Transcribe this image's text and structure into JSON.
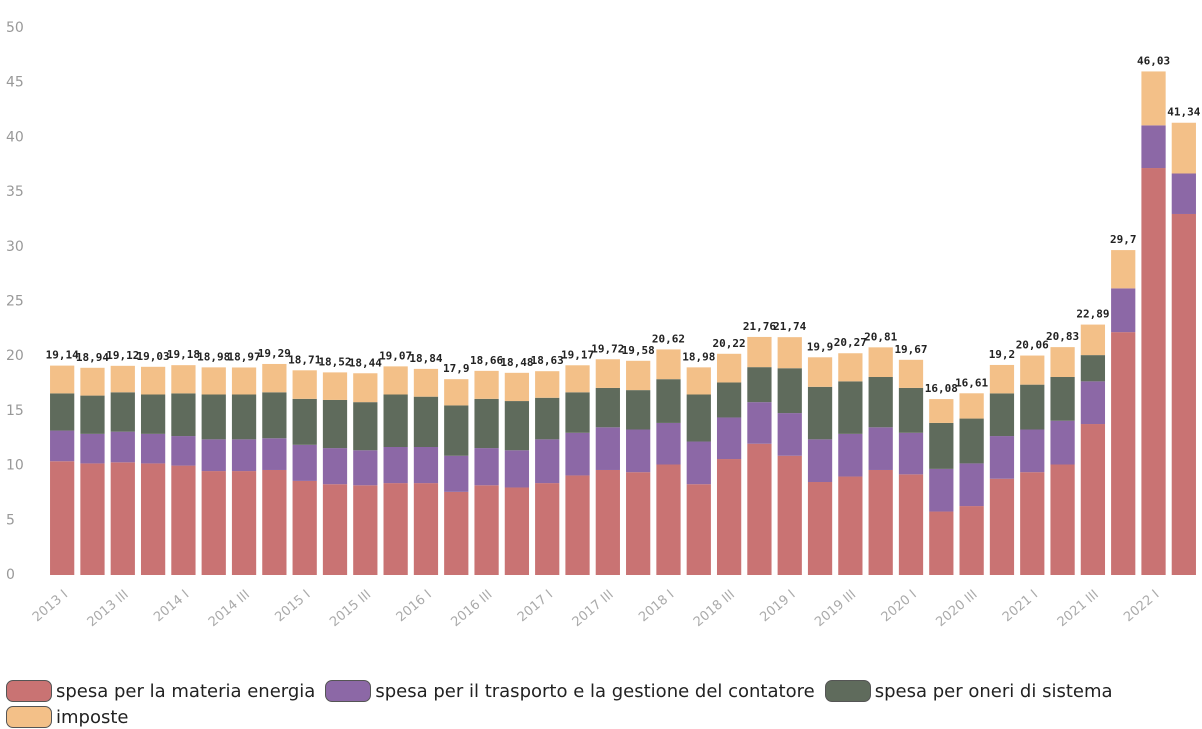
{
  "chart_data": {
    "type": "stacked_bar",
    "categories": [
      "2013 I",
      null,
      "2013 III",
      null,
      "2014 I",
      null,
      "2014 III",
      null,
      "2015 I",
      null,
      "2015 III",
      null,
      "2016 I",
      null,
      "2016 III",
      null,
      "2017 I",
      null,
      "2017 III",
      null,
      "2018 I",
      null,
      "2018 III",
      null,
      "2019 I",
      null,
      "2019 III",
      null,
      "2020 I",
      null,
      "2020 III",
      null,
      "2021 I",
      null,
      "2021 III",
      null,
      "2022 I",
      null
    ],
    "series": [
      {
        "name": "spesa per la materia energia",
        "color": "#c97373",
        "values": [
          10.4,
          10.2,
          10.3,
          10.2,
          10.0,
          9.5,
          9.5,
          9.6,
          8.6,
          8.3,
          8.2,
          8.4,
          8.4,
          7.6,
          8.2,
          8.0,
          8.4,
          9.1,
          9.6,
          9.4,
          10.1,
          8.3,
          10.6,
          12.0,
          10.9,
          8.5,
          9.0,
          9.6,
          9.2,
          5.8,
          6.3,
          8.8,
          9.4,
          10.1,
          13.8,
          22.2,
          37.2,
          33.0
        ]
      },
      {
        "name": "spesa per il trasporto e la gestione del contatore",
        "color": "#8c68a6",
        "values": [
          2.8,
          2.7,
          2.8,
          2.7,
          2.7,
          2.9,
          2.9,
          2.9,
          3.3,
          3.3,
          3.2,
          3.3,
          3.3,
          3.3,
          3.4,
          3.4,
          4.0,
          3.9,
          3.9,
          3.9,
          3.8,
          3.9,
          3.8,
          3.8,
          3.9,
          3.9,
          3.9,
          3.9,
          3.8,
          3.9,
          3.9,
          3.9,
          3.9,
          4.0,
          3.9,
          4.0,
          3.9,
          3.7
        ]
      },
      {
        "name": "spesa per oneri di sistema",
        "color": "#5f6b5c",
        "values": [
          3.4,
          3.5,
          3.6,
          3.6,
          3.9,
          4.1,
          4.1,
          4.2,
          4.2,
          4.4,
          4.4,
          4.8,
          4.6,
          4.6,
          4.5,
          4.5,
          3.8,
          3.7,
          3.6,
          3.6,
          4.0,
          4.3,
          3.2,
          3.2,
          4.1,
          4.8,
          4.8,
          4.6,
          4.1,
          4.2,
          4.1,
          3.9,
          4.1,
          4.0,
          2.4,
          0,
          0,
          0
        ]
      },
      {
        "name": "imposte",
        "color": "#f3c088",
        "values": [
          2.54,
          2.54,
          2.42,
          2.53,
          2.58,
          2.48,
          2.47,
          2.59,
          2.61,
          2.52,
          2.64,
          2.57,
          2.54,
          2.4,
          2.56,
          2.58,
          2.43,
          2.47,
          2.62,
          2.68,
          2.72,
          2.48,
          2.62,
          2.76,
          2.84,
          2.7,
          2.57,
          2.71,
          2.57,
          2.18,
          2.31,
          2.6,
          2.66,
          2.73,
          2.79,
          3.5,
          4.93,
          4.64
        ]
      }
    ],
    "totals": {
      "values": [
        19.14,
        18.94,
        19.12,
        19.03,
        19.18,
        18.98,
        18.97,
        19.29,
        18.71,
        18.52,
        18.44,
        19.07,
        18.84,
        17.9,
        18.66,
        18.48,
        18.63,
        19.17,
        19.72,
        19.58,
        20.62,
        18.98,
        20.22,
        21.76,
        21.74,
        19.9,
        20.27,
        20.81,
        19.67,
        16.08,
        16.61,
        19.2,
        20.06,
        20.83,
        22.89,
        29.7,
        46.03,
        41.34
      ],
      "value_labels": [
        "19,14",
        "18,94",
        "19,12",
        "19,03",
        "19,18",
        "18,98",
        "18,97",
        "19,29",
        "18,71",
        "18,52",
        "18,44",
        "19,07",
        "18,84",
        "17,9",
        "18,66",
        "18,48",
        "18,63",
        "19,17",
        "19,72",
        "19,58",
        "20,62",
        "18,98",
        "20,22",
        "21,76",
        "21,74",
        "19,9",
        "20,27",
        "20,81",
        "19,67",
        "16,08",
        "16,61",
        "19,2",
        "20,06",
        "20,83",
        "22,89",
        "29,7",
        "46,03",
        "41,34"
      ]
    },
    "ylim": [
      0,
      50
    ],
    "yticks": [
      0,
      5,
      10,
      15,
      20,
      25,
      30,
      35,
      40,
      45,
      50
    ],
    "grid": false
  }
}
